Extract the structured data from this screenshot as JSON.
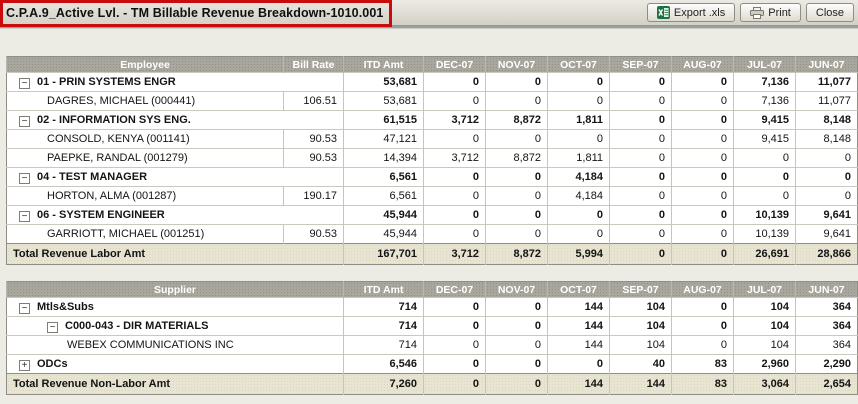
{
  "header": {
    "title": "C.P.A.9_Active Lvl. - TM Billable Revenue Breakdown-1010.001",
    "buttons": {
      "export": "Export .xls",
      "print": "Print",
      "close": "Close"
    }
  },
  "colors": {
    "annotation_red": "#C90B0B",
    "header_gray": "#A9A79D",
    "total_beige": "#E7E4D2",
    "excel_green": "#1E7145"
  },
  "labor": {
    "columns": [
      "Employee",
      "Bill Rate",
      "ITD Amt",
      "DEC-07",
      "NOV-07",
      "OCT-07",
      "SEP-07",
      "AUG-07",
      "JUL-07",
      "JUN-07"
    ],
    "rows": [
      {
        "level": 1,
        "expander": "expanded",
        "bold": true,
        "label": "01 - PRIN SYSTEMS ENGR",
        "bill_rate": "",
        "values": [
          "53,681",
          "0",
          "0",
          "0",
          "0",
          "0",
          "7,136",
          "11,077"
        ]
      },
      {
        "level": 2,
        "expander": null,
        "bold": false,
        "label": "DAGRES, MICHAEL (000441)",
        "bill_rate": "106.51",
        "values": [
          "53,681",
          "0",
          "0",
          "0",
          "0",
          "0",
          "7,136",
          "11,077"
        ]
      },
      {
        "level": 1,
        "expander": "expanded",
        "bold": true,
        "label": "02 - INFORMATION SYS ENG.",
        "bill_rate": "",
        "values": [
          "61,515",
          "3,712",
          "8,872",
          "1,811",
          "0",
          "0",
          "9,415",
          "8,148"
        ]
      },
      {
        "level": 2,
        "expander": null,
        "bold": false,
        "label": "CONSOLD, KENYA (001141)",
        "bill_rate": "90.53",
        "values": [
          "47,121",
          "0",
          "0",
          "0",
          "0",
          "0",
          "9,415",
          "8,148"
        ]
      },
      {
        "level": 2,
        "expander": null,
        "bold": false,
        "label": "PAEPKE, RANDAL (001279)",
        "bill_rate": "90.53",
        "values": [
          "14,394",
          "3,712",
          "8,872",
          "1,811",
          "0",
          "0",
          "0",
          "0"
        ]
      },
      {
        "level": 1,
        "expander": "expanded",
        "bold": true,
        "label": "04 - TEST MANAGER",
        "bill_rate": "",
        "values": [
          "6,561",
          "0",
          "0",
          "4,184",
          "0",
          "0",
          "0",
          "0"
        ]
      },
      {
        "level": 2,
        "expander": null,
        "bold": false,
        "label": "HORTON, ALMA (001287)",
        "bill_rate": "190.17",
        "values": [
          "6,561",
          "0",
          "0",
          "4,184",
          "0",
          "0",
          "0",
          "0"
        ]
      },
      {
        "level": 1,
        "expander": "expanded",
        "bold": true,
        "label": "06 - SYSTEM ENGINEER",
        "bill_rate": "",
        "values": [
          "45,944",
          "0",
          "0",
          "0",
          "0",
          "0",
          "10,139",
          "9,641"
        ]
      },
      {
        "level": 2,
        "expander": null,
        "bold": false,
        "label": "GARRIOTT, MICHAEL (001251)",
        "bill_rate": "90.53",
        "values": [
          "45,944",
          "0",
          "0",
          "0",
          "0",
          "0",
          "10,139",
          "9,641"
        ]
      }
    ],
    "total": {
      "label": "Total Revenue Labor Amt",
      "values": [
        "167,701",
        "3,712",
        "8,872",
        "5,994",
        "0",
        "0",
        "26,691",
        "28,866"
      ]
    }
  },
  "nonlabor": {
    "columns": [
      "Supplier",
      "ITD Amt",
      "DEC-07",
      "NOV-07",
      "OCT-07",
      "SEP-07",
      "AUG-07",
      "JUL-07",
      "JUN-07"
    ],
    "rows": [
      {
        "level": 1,
        "expander": "expanded",
        "bold": true,
        "label": "Mtls&Subs",
        "values": [
          "714",
          "0",
          "0",
          "144",
          "104",
          "0",
          "104",
          "364"
        ]
      },
      {
        "level": 2,
        "expander": "expanded",
        "bold": true,
        "label": "C000-043 - DIR MATERIALS",
        "values": [
          "714",
          "0",
          "0",
          "144",
          "104",
          "0",
          "104",
          "364"
        ]
      },
      {
        "level": 3,
        "expander": null,
        "bold": false,
        "label": "WEBEX COMMUNICATIONS INC",
        "values": [
          "714",
          "0",
          "0",
          "144",
          "104",
          "0",
          "104",
          "364"
        ]
      },
      {
        "level": 1,
        "expander": "collapsed",
        "bold": true,
        "label": "ODCs",
        "values": [
          "6,546",
          "0",
          "0",
          "0",
          "40",
          "83",
          "2,960",
          "2,290"
        ]
      }
    ],
    "total": {
      "label": "Total Revenue Non-Labor Amt",
      "values": [
        "7,260",
        "0",
        "0",
        "144",
        "144",
        "83",
        "3,064",
        "2,654"
      ]
    }
  }
}
